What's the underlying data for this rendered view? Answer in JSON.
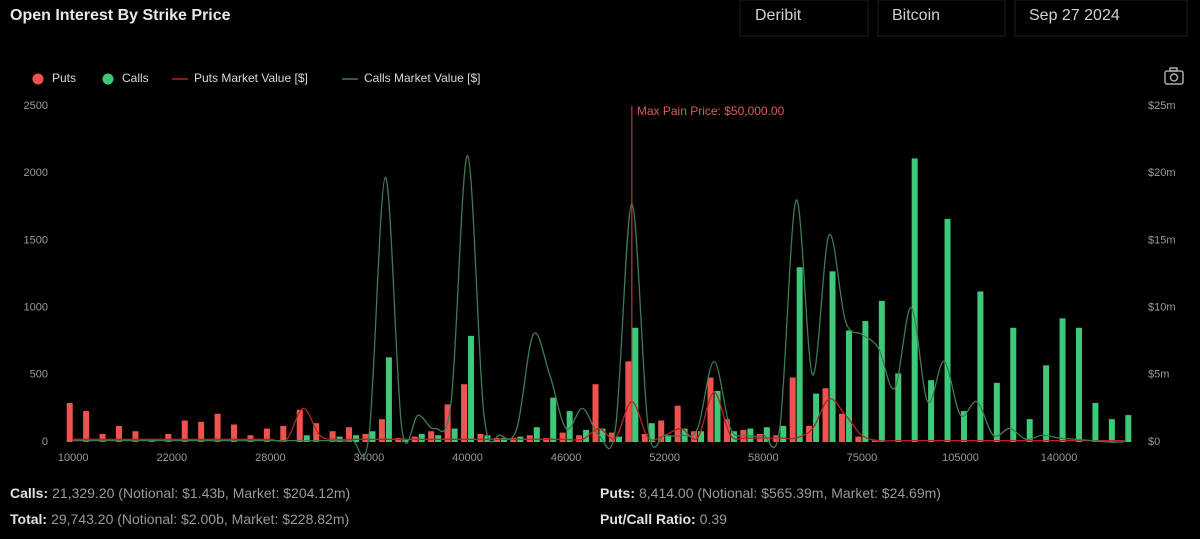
{
  "header": {
    "filters": [
      "Deribit",
      "Bitcoin",
      "Sep 27 2024"
    ]
  },
  "chart_data": {
    "type": "bar",
    "title": "Open Interest By Strike Price",
    "annotation": "Max Pain Price: $50,000.00",
    "categories": [
      "10000",
      null,
      null,
      null,
      null,
      null,
      "22000",
      null,
      null,
      null,
      null,
      null,
      "28000",
      null,
      null,
      null,
      null,
      null,
      "34000",
      null,
      null,
      null,
      null,
      null,
      "40000",
      null,
      null,
      null,
      null,
      null,
      "46000",
      null,
      null,
      null,
      null,
      null,
      "52000",
      null,
      null,
      null,
      null,
      null,
      "58000",
      null,
      null,
      null,
      null,
      null,
      "75000",
      null,
      null,
      null,
      null,
      null,
      "105000",
      null,
      null,
      null,
      null,
      null,
      "140000",
      null,
      null,
      null,
      null
    ],
    "series": [
      {
        "name": "Puts",
        "color": "#ef5350",
        "values": [
          290,
          230,
          60,
          120,
          80,
          20,
          60,
          160,
          150,
          210,
          130,
          50,
          100,
          120,
          240,
          140,
          80,
          110,
          60,
          170,
          30,
          40,
          80,
          280,
          430,
          60,
          30,
          30,
          50,
          30,
          70,
          50,
          430,
          70,
          600,
          60,
          160,
          270,
          80,
          480,
          170,
          90,
          60,
          50,
          480,
          120,
          400,
          210,
          40,
          10,
          0,
          0,
          0,
          0,
          0,
          0,
          0,
          0,
          0,
          0,
          0,
          0,
          0,
          0,
          0
        ]
      },
      {
        "name": "Calls",
        "color": "#3ec97a",
        "values": [
          0,
          0,
          0,
          0,
          0,
          0,
          0,
          0,
          0,
          0,
          0,
          0,
          0,
          0,
          50,
          0,
          40,
          50,
          80,
          630,
          20,
          60,
          50,
          100,
          790,
          50,
          30,
          40,
          110,
          330,
          230,
          90,
          100,
          40,
          850,
          140,
          50,
          100,
          80,
          380,
          80,
          100,
          110,
          120,
          1300,
          360,
          1270,
          830,
          900,
          1050,
          510,
          2110,
          460,
          1660,
          230,
          1120,
          440,
          850,
          170,
          570,
          920,
          850,
          290,
          170,
          200
        ]
      },
      {
        "name": "Puts Market Value [$]",
        "type": "line",
        "axis": "y2",
        "color": "#b3261e",
        "values": [
          200000,
          200000,
          200000,
          200000,
          200000,
          200000,
          200000,
          200000,
          200000,
          200000,
          200000,
          200000,
          200000,
          200000,
          2500000,
          500000,
          200000,
          200000,
          200000,
          200000,
          200000,
          200000,
          200000,
          200000,
          200000,
          200000,
          200000,
          200000,
          200000,
          200000,
          200000,
          200000,
          1000000,
          300000,
          3000000,
          300000,
          500000,
          1000000,
          300000,
          3700000,
          500000,
          300000,
          300000,
          300000,
          300000,
          1000000,
          3200000,
          2000000,
          500000,
          100000,
          100000,
          100000,
          100000,
          100000,
          100000,
          100000,
          100000,
          100000,
          100000,
          100000,
          100000,
          100000,
          100000,
          100000,
          100000
        ]
      },
      {
        "name": "Calls Market Value [$]",
        "type": "line",
        "axis": "y2",
        "color": "#3f7a55",
        "values": [
          100000,
          100000,
          100000,
          100000,
          100000,
          100000,
          100000,
          100000,
          100000,
          100000,
          100000,
          100000,
          100000,
          100000,
          100000,
          100000,
          100000,
          100000,
          500000,
          19700000,
          1000000,
          2000000,
          1000000,
          3000000,
          21300000,
          2000000,
          500000,
          1000000,
          8000000,
          5000000,
          1000000,
          2500000,
          500000,
          1000000,
          17700000,
          1000000,
          500000,
          500000,
          1000000,
          6000000,
          1000000,
          500000,
          500000,
          1000000,
          18000000,
          5000000,
          15400000,
          9000000,
          8000000,
          7000000,
          4000000,
          10000000,
          3000000,
          6000000,
          2000000,
          3000000,
          500000,
          1000000,
          200000,
          500000,
          300000,
          200000,
          100000,
          0,
          0
        ]
      }
    ],
    "ylim": [
      0,
      2500
    ],
    "yticks": [
      0,
      500,
      1000,
      1500,
      2000,
      2500
    ],
    "y2lim": [
      0,
      25000000
    ],
    "y2ticks": [
      {
        "value": 0,
        "label": "$0"
      },
      {
        "value": 5000000,
        "label": "$5m"
      },
      {
        "value": 10000000,
        "label": "$10m"
      },
      {
        "value": 15000000,
        "label": "$15m"
      },
      {
        "value": 20000000,
        "label": "$20m"
      },
      {
        "value": 25000000,
        "label": "$25m"
      }
    ],
    "grid": false
  },
  "summary": [
    {
      "label": "Calls:",
      "value": "21,329.20 (Notional: $1.43b, Market: $204.12m)"
    },
    {
      "label": "Puts:",
      "value": "8,414.00 (Notional: $565.39m, Market: $24.69m)"
    },
    {
      "label": "Total:",
      "value": "29,743.20 (Notional: $2.00b, Market: $228.82m)"
    },
    {
      "label": "Put/Call Ratio:",
      "value": "0.39"
    }
  ]
}
